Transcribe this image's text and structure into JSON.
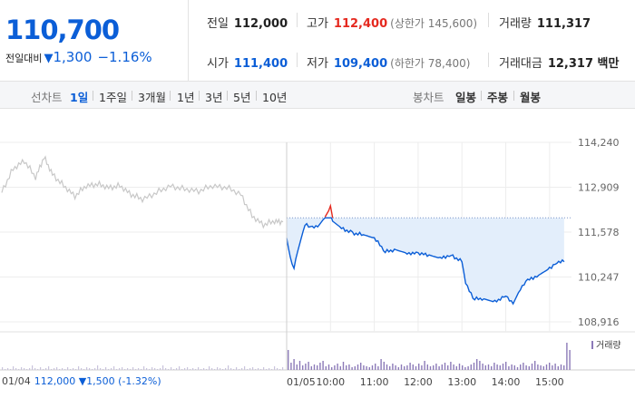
{
  "price": {
    "current": "110,700",
    "change_label": "전일대비",
    "change_icon": "down-triangle-icon",
    "change_value": "1,300",
    "change_pct": "−1.16%"
  },
  "stats": {
    "prev_close_label": "전일",
    "prev_close": "112,000",
    "high_label": "고가",
    "high": "112,400",
    "upper_limit": "(상한가 145,600)",
    "volume_label": "거래량",
    "volume": "111,317",
    "open_label": "시가",
    "open": "111,400",
    "low_label": "저가",
    "low": "109,400",
    "lower_limit": "(하한가 78,400)",
    "amount_label": "거래대금",
    "amount": "12,317 백만"
  },
  "tabs": {
    "line_header": "선차트",
    "line": [
      "1일",
      "1주일",
      "3개월",
      "1년",
      "3년",
      "5년",
      "10년"
    ],
    "candle_header": "봉차트",
    "candle": [
      "일봉",
      "주봉",
      "월봉"
    ],
    "selected": "1일"
  },
  "colors": {
    "up": "#e5291f",
    "down": "#0b5ed7",
    "prev_day_line": "#c8c8c8",
    "fill": "#e3eefb",
    "volume": "#8c7ab8"
  },
  "chart_data": {
    "type": "line",
    "y_ticks": [
      "114,240",
      "112,909",
      "111,578",
      "110,247",
      "108,916"
    ],
    "ylim": [
      108916,
      114240
    ],
    "reference_price": 112000,
    "x_ticks": [
      "01/05",
      "10:00",
      "11:00",
      "12:00",
      "13:00",
      "14:00",
      "15:00"
    ],
    "series": [
      {
        "date": "01/04",
        "points": [
          [
            0,
            112780
          ],
          [
            0.04,
            113450
          ],
          [
            0.08,
            113700
          ],
          [
            0.12,
            113200
          ],
          [
            0.15,
            113800
          ],
          [
            0.18,
            113300
          ],
          [
            0.22,
            112950
          ],
          [
            0.26,
            112650
          ],
          [
            0.3,
            112950
          ],
          [
            0.34,
            113000
          ],
          [
            0.38,
            112900
          ],
          [
            0.42,
            112950
          ],
          [
            0.46,
            112700
          ],
          [
            0.5,
            112550
          ],
          [
            0.55,
            112750
          ],
          [
            0.6,
            112950
          ],
          [
            0.65,
            112850
          ],
          [
            0.7,
            112800
          ],
          [
            0.75,
            112950
          ],
          [
            0.8,
            112900
          ],
          [
            0.85,
            112700
          ],
          [
            0.89,
            112050
          ],
          [
            0.93,
            111800
          ],
          [
            0.97,
            111900
          ],
          [
            1,
            111880
          ]
        ]
      },
      {
        "date": "01/05",
        "points": [
          [
            "09:00",
            111400
          ],
          [
            "09:05",
            110800
          ],
          [
            "09:10",
            110550
          ],
          [
            "09:15",
            111000
          ],
          [
            "09:25",
            111800
          ],
          [
            "09:35",
            111700
          ],
          [
            "09:45",
            111800
          ],
          [
            "09:55",
            112100
          ],
          [
            "10:00",
            112400
          ],
          [
            "10:03",
            111900
          ],
          [
            "10:15",
            111700
          ],
          [
            "10:30",
            111550
          ],
          [
            "10:45",
            111500
          ],
          [
            "11:00",
            111400
          ],
          [
            "11:15",
            111000
          ],
          [
            "11:30",
            111050
          ],
          [
            "11:45",
            110950
          ],
          [
            "12:00",
            110950
          ],
          [
            "12:15",
            110900
          ],
          [
            "12:30",
            110800
          ],
          [
            "12:45",
            110900
          ],
          [
            "13:00",
            110700
          ],
          [
            "13:05",
            110100
          ],
          [
            "13:15",
            109600
          ],
          [
            "13:30",
            109600
          ],
          [
            "13:45",
            109500
          ],
          [
            "14:00",
            109700
          ],
          [
            "14:10",
            109450
          ],
          [
            "14:20",
            109900
          ],
          [
            "14:30",
            110150
          ],
          [
            "14:45",
            110300
          ],
          [
            "15:00",
            110500
          ],
          [
            "15:10",
            110700
          ],
          [
            "15:20",
            110700
          ]
        ]
      }
    ],
    "volume_label": "거래량",
    "prev_day_summary": {
      "date": "01/04",
      "close": "112,000",
      "change": "1,500",
      "change_pct": "(-1.32%)",
      "direction_icon": "down-triangle-icon"
    }
  }
}
